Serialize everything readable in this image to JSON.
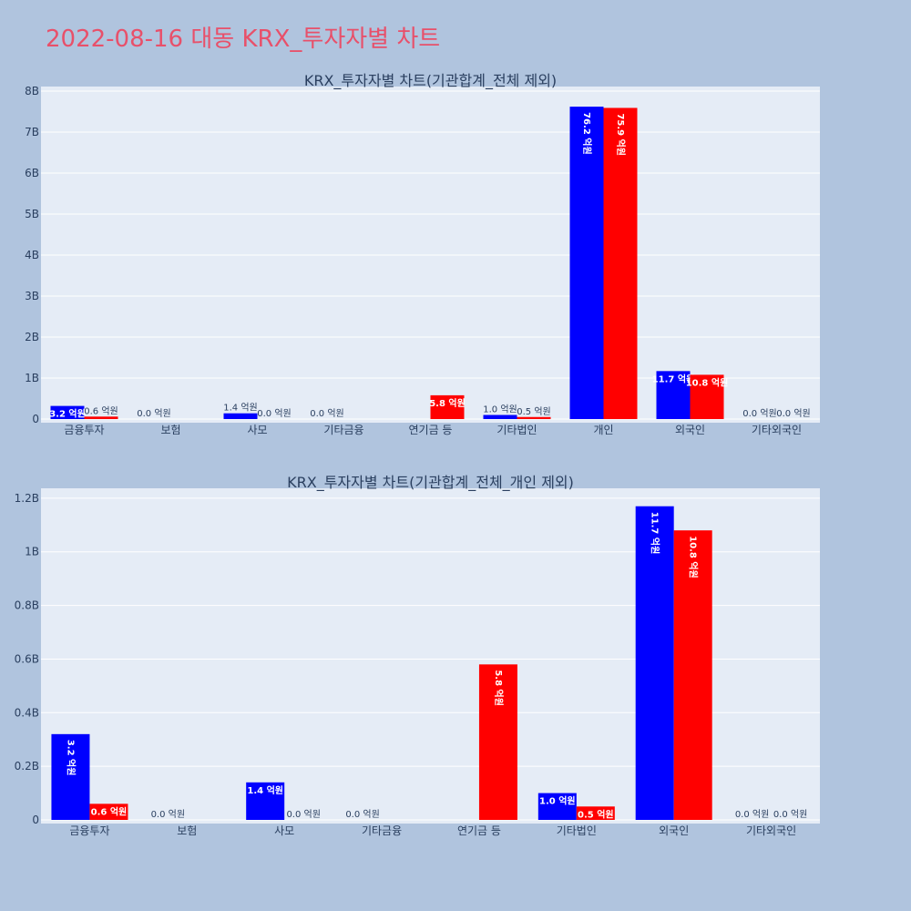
{
  "page": {
    "title": "2022-08-16 대동 KRX_투자자별 차트"
  },
  "colors": {
    "background": "#b0c4de",
    "plot_bg": "#e5ecf6",
    "grid": "#ffffff",
    "title": "#e8506a",
    "buy": "#0000ff",
    "sell": "#ff0000"
  },
  "chart_data": [
    {
      "type": "bar",
      "title": "KRX_투자자별 차트(기관합계_전체 제외)",
      "categories": [
        "금융투자",
        "보험",
        "사모",
        "기타금융",
        "연기금 등",
        "기타법인",
        "개인",
        "외국인",
        "기타외국인"
      ],
      "series": [
        {
          "color": "#0000ff",
          "values": [
            320000000,
            0,
            140000000,
            0,
            0,
            100000000,
            7620000000,
            1170000000,
            0
          ],
          "labels": [
            "3.2 억원",
            "0.0 억원",
            "1.4 억원",
            "0.0 억원",
            "",
            "1.0 억원",
            "76.2 억원",
            "11.7 억원",
            "0.0 억원"
          ]
        },
        {
          "color": "#ff0000",
          "values": [
            60000000,
            0,
            0,
            0,
            580000000,
            50000000,
            7590000000,
            1080000000,
            0
          ],
          "labels": [
            "0.6 억원",
            "",
            "0.0 억원",
            "",
            "5.8 억원",
            "0.5 억원",
            "75.9 억원",
            "10.8 억원",
            "0.0 억원"
          ]
        }
      ],
      "ylim": [
        0,
        8000000000
      ],
      "yticks": [
        0,
        1000000000,
        2000000000,
        3000000000,
        4000000000,
        5000000000,
        6000000000,
        7000000000,
        8000000000
      ],
      "yticklabels": [
        "0",
        "1B",
        "2B",
        "3B",
        "4B",
        "5B",
        "6B",
        "7B",
        "8B"
      ],
      "grid": true
    },
    {
      "type": "bar",
      "title": "KRX_투자자별 차트(기관합계_전체_개인 제외)",
      "categories": [
        "금융투자",
        "보험",
        "사모",
        "기타금융",
        "연기금 등",
        "기타법인",
        "외국인",
        "기타외국인"
      ],
      "series": [
        {
          "color": "#0000ff",
          "values": [
            320000000,
            0,
            140000000,
            0,
            0,
            100000000,
            1170000000,
            0
          ],
          "labels": [
            "3.2 억원",
            "0.0 억원",
            "1.4 억원",
            "0.0 억원",
            "",
            "1.0 억원",
            "11.7 억원",
            "0.0 억원"
          ]
        },
        {
          "color": "#ff0000",
          "values": [
            60000000,
            0,
            0,
            0,
            580000000,
            50000000,
            1080000000,
            0
          ],
          "labels": [
            "0.6 억원",
            "",
            "0.0 억원",
            "",
            "5.8 억원",
            "0.5 억원",
            "10.8 억원",
            "0.0 억원"
          ]
        }
      ],
      "ylim": [
        0,
        1220000000
      ],
      "yticks": [
        0,
        200000000,
        400000000,
        600000000,
        800000000,
        1000000000,
        1200000000
      ],
      "yticklabels": [
        "0",
        "0.2B",
        "0.4B",
        "0.6B",
        "0.8B",
        "1B",
        "1.2B"
      ],
      "grid": true
    }
  ]
}
